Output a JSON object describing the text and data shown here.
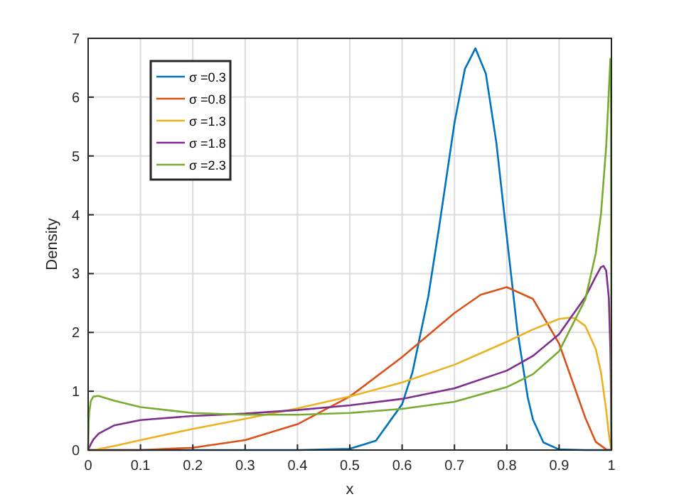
{
  "chart_data": {
    "type": "line",
    "xlabel": "x",
    "ylabel": "Density",
    "xlim": [
      0,
      1
    ],
    "ylim": [
      0,
      7
    ],
    "xticks": [
      0,
      0.1,
      0.2,
      0.3,
      0.4,
      0.5,
      0.6,
      0.7,
      0.8,
      0.9,
      1
    ],
    "yticks": [
      0,
      1,
      2,
      3,
      4,
      5,
      6,
      7
    ],
    "grid": true,
    "legend": "top left",
    "line_style": "solid",
    "series": [
      {
        "name": "σ =0.3",
        "color": "#0072bd",
        "x": [
          0,
          0.4,
          0.5,
          0.55,
          0.6,
          0.62,
          0.65,
          0.67,
          0.7,
          0.72,
          0.74,
          0.76,
          0.78,
          0.8,
          0.82,
          0.84,
          0.85,
          0.87,
          0.9,
          0.95,
          1
        ],
        "values": [
          0,
          0,
          0.02,
          0.16,
          0.78,
          1.33,
          2.61,
          3.75,
          5.56,
          6.48,
          6.83,
          6.4,
          5.23,
          3.63,
          2.05,
          0.9,
          0.52,
          0.13,
          0.01,
          0,
          0
        ]
      },
      {
        "name": "σ =0.8",
        "color": "#d95319",
        "x": [
          0,
          0.1,
          0.2,
          0.3,
          0.4,
          0.5,
          0.6,
          0.7,
          0.75,
          0.8,
          0.85,
          0.9,
          0.95,
          0.97,
          0.99,
          1
        ],
        "values": [
          0,
          0,
          0.04,
          0.17,
          0.44,
          0.91,
          1.58,
          2.33,
          2.64,
          2.77,
          2.57,
          1.81,
          0.55,
          0.14,
          0.01,
          0
        ]
      },
      {
        "name": "σ =1.3",
        "color": "#edb120",
        "x": [
          0,
          0.01,
          0.05,
          0.1,
          0.2,
          0.3,
          0.4,
          0.5,
          0.6,
          0.7,
          0.8,
          0.85,
          0.9,
          0.92,
          0.93,
          0.95,
          0.97,
          0.98,
          0.99,
          0.995,
          1
        ],
        "values": [
          0,
          0,
          0.07,
          0.17,
          0.36,
          0.53,
          0.71,
          0.91,
          1.15,
          1.45,
          1.84,
          2.05,
          2.23,
          2.25,
          2.24,
          2.11,
          1.72,
          1.32,
          0.68,
          0.27,
          0
        ]
      },
      {
        "name": "σ =1.8",
        "color": "#7e2f8e",
        "x": [
          0,
          0.005,
          0.01,
          0.02,
          0.05,
          0.1,
          0.2,
          0.3,
          0.4,
          0.5,
          0.6,
          0.7,
          0.8,
          0.85,
          0.9,
          0.95,
          0.97,
          0.98,
          0.985,
          0.99,
          0.995,
          0.998,
          0.999,
          1
        ],
        "values": [
          0,
          0.1,
          0.18,
          0.28,
          0.42,
          0.51,
          0.58,
          0.62,
          0.68,
          0.76,
          0.87,
          1.05,
          1.35,
          1.6,
          1.97,
          2.6,
          2.95,
          3.11,
          3.13,
          3.05,
          2.59,
          1.68,
          1.01,
          0
        ]
      },
      {
        "name": "σ =2.3",
        "color": "#77ac30",
        "x": [
          0,
          0.001,
          0.002,
          0.005,
          0.01,
          0.02,
          0.05,
          0.1,
          0.2,
          0.3,
          0.4,
          0.5,
          0.6,
          0.7,
          0.8,
          0.85,
          0.9,
          0.95,
          0.97,
          0.98,
          0.99,
          0.995,
          0.998,
          0.999,
          1
        ],
        "values": [
          0,
          0.47,
          0.64,
          0.83,
          0.91,
          0.92,
          0.84,
          0.73,
          0.63,
          0.6,
          0.6,
          0.63,
          0.7,
          0.82,
          1.07,
          1.29,
          1.68,
          2.56,
          3.34,
          4.01,
          5.16,
          6.1,
          6.65,
          6.4,
          0
        ]
      }
    ]
  }
}
